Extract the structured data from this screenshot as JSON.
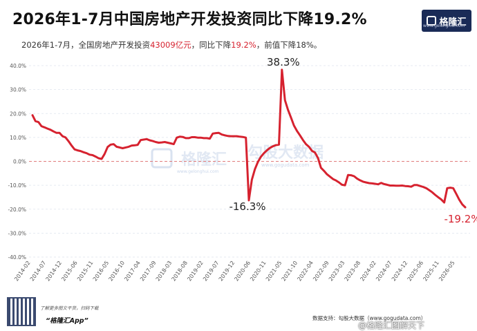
{
  "header": {
    "title": "2026年1-7月中国房地产开发投资同比下降19.2%",
    "subtitle_a": "2026年1-7月，全国房地产开发投资",
    "subtitle_b": "43009亿元",
    "subtitle_c": "，同比下降",
    "subtitle_d": "19.2%",
    "subtitle_e": "，前值下降18%。",
    "logo_text": "格隆汇",
    "logo_url": "www.gelonghui.com"
  },
  "watermarks": {
    "left": "格隆汇",
    "left_url": "www.gelonghui.com",
    "right": "勾股大数据",
    "right_url": "www.gogudata.com"
  },
  "footer": {
    "scan_text": "了解更多图文干货，扫码下载",
    "app_text": "“格隆汇App”",
    "source_text": "数据支持：勾股大数据（www.gogudata.com）",
    "weibo": "@格隆汇图解天下"
  },
  "colors": {
    "line": "#d6222f",
    "zero": "#e07a7a",
    "grid": "#dde3ee",
    "axis_text": "#555555",
    "brand": "#1a2b57"
  },
  "chart_data": {
    "type": "line",
    "title": "2026年1-7月中国房地产开发投资同比下降19.2%",
    "xlabel": "",
    "ylabel": "",
    "ylim": [
      -40,
      40
    ],
    "yticks": [
      "-40.0%",
      "-30.0%",
      "-20.0%",
      "-10.0%",
      "0.0%",
      "10.0%",
      "20.0%",
      "30.0%",
      "40.0%"
    ],
    "xtick_labels": [
      "2014-02",
      "2014-07",
      "2014-12",
      "2015-06",
      "2015-11",
      "2016-05",
      "2016-10",
      "2017-04",
      "2017-09",
      "2018-03",
      "2018-08",
      "2019-02",
      "2019-07",
      "2019-12",
      "2020-06",
      "2020-11",
      "2021-05",
      "2021-10",
      "2022-04",
      "2022-09",
      "2023-03",
      "2023-08",
      "2024-02",
      "2024-07",
      "2024-12",
      "2025-06",
      "2025-11",
      "2026-05"
    ],
    "series": [
      {
        "values": [
          [
            0,
            19.3
          ],
          [
            1,
            16.8
          ],
          [
            2,
            16.4
          ],
          [
            3,
            14.7
          ],
          [
            4,
            14.2
          ],
          [
            5,
            13.7
          ],
          [
            6,
            13.2
          ],
          [
            7,
            12.5
          ],
          [
            8,
            11.9
          ],
          [
            9,
            11.9
          ],
          [
            10,
            10.5
          ],
          [
            11,
            10.0
          ],
          [
            12,
            8.4
          ],
          [
            13,
            6.6
          ],
          [
            14,
            5.0
          ],
          [
            15,
            4.6
          ],
          [
            16,
            4.3
          ],
          [
            17,
            3.8
          ],
          [
            18,
            3.4
          ],
          [
            19,
            2.8
          ],
          [
            20,
            2.6
          ],
          [
            21,
            2.0
          ],
          [
            22,
            1.3
          ],
          [
            23,
            1.0
          ],
          [
            24,
            3.1
          ],
          [
            25,
            6.0
          ],
          [
            26,
            7.0
          ],
          [
            27,
            7.2
          ],
          [
            28,
            6.1
          ],
          [
            29,
            5.8
          ],
          [
            30,
            5.5
          ],
          [
            31,
            5.8
          ],
          [
            32,
            6.1
          ],
          [
            33,
            6.6
          ],
          [
            34,
            6.7
          ],
          [
            35,
            6.9
          ],
          [
            36,
            8.9
          ],
          [
            37,
            9.1
          ],
          [
            38,
            9.3
          ],
          [
            39,
            8.8
          ],
          [
            40,
            8.5
          ],
          [
            41,
            8.1
          ],
          [
            42,
            7.8
          ],
          [
            43,
            7.9
          ],
          [
            44,
            8.1
          ],
          [
            45,
            7.8
          ],
          [
            46,
            7.5
          ],
          [
            47,
            7.2
          ],
          [
            48,
            9.9
          ],
          [
            49,
            10.3
          ],
          [
            50,
            10.2
          ],
          [
            51,
            9.7
          ],
          [
            52,
            9.7
          ],
          [
            53,
            10.1
          ],
          [
            54,
            10.1
          ],
          [
            55,
            9.9
          ],
          [
            56,
            9.9
          ],
          [
            57,
            9.7
          ],
          [
            58,
            9.7
          ],
          [
            59,
            9.5
          ],
          [
            60,
            11.6
          ],
          [
            61,
            11.8
          ],
          [
            62,
            11.9
          ],
          [
            63,
            11.2
          ],
          [
            64,
            10.9
          ],
          [
            65,
            10.6
          ],
          [
            66,
            10.5
          ],
          [
            67,
            10.5
          ],
          [
            68,
            10.5
          ],
          [
            69,
            10.3
          ],
          [
            70,
            10.2
          ],
          [
            71,
            9.9
          ],
          [
            72,
            -16.3
          ],
          [
            73,
            -7.7
          ],
          [
            74,
            -3.3
          ],
          [
            75,
            -0.3
          ],
          [
            76,
            1.9
          ],
          [
            77,
            3.4
          ],
          [
            78,
            4.6
          ],
          [
            79,
            5.6
          ],
          [
            80,
            6.3
          ],
          [
            81,
            6.8
          ],
          [
            82,
            7.0
          ],
          [
            83,
            38.3
          ],
          [
            84,
            25.6
          ],
          [
            85,
            21.6
          ],
          [
            86,
            18.3
          ],
          [
            87,
            15.0
          ],
          [
            88,
            12.7
          ],
          [
            89,
            10.9
          ],
          [
            90,
            8.9
          ],
          [
            91,
            7.2
          ],
          [
            92,
            6.1
          ],
          [
            93,
            4.4
          ],
          [
            94,
            3.7
          ],
          [
            95,
            1.4
          ],
          [
            96,
            -2.7
          ],
          [
            97,
            -4.0
          ],
          [
            98,
            -5.4
          ],
          [
            99,
            -6.4
          ],
          [
            100,
            -7.4
          ],
          [
            101,
            -8.0
          ],
          [
            102,
            -8.8
          ],
          [
            103,
            -9.8
          ],
          [
            104,
            -10.0
          ],
          [
            105,
            -5.7
          ],
          [
            106,
            -5.8
          ],
          [
            107,
            -6.2
          ],
          [
            108,
            -7.2
          ],
          [
            109,
            -7.9
          ],
          [
            110,
            -8.5
          ],
          [
            111,
            -8.8
          ],
          [
            112,
            -9.1
          ],
          [
            113,
            -9.2
          ],
          [
            114,
            -9.4
          ],
          [
            115,
            -9.6
          ],
          [
            116,
            -9.0
          ],
          [
            117,
            -9.5
          ],
          [
            118,
            -9.8
          ],
          [
            119,
            -10.1
          ],
          [
            120,
            -10.1
          ],
          [
            121,
            -10.2
          ],
          [
            122,
            -10.2
          ],
          [
            123,
            -10.1
          ],
          [
            124,
            -10.3
          ],
          [
            125,
            -10.4
          ],
          [
            126,
            -10.6
          ],
          [
            127,
            -9.9
          ],
          [
            128,
            -9.9
          ],
          [
            129,
            -10.3
          ],
          [
            130,
            -10.7
          ],
          [
            131,
            -11.2
          ],
          [
            132,
            -12.0
          ],
          [
            133,
            -12.9
          ],
          [
            134,
            -14.0
          ],
          [
            135,
            -15.0
          ],
          [
            136,
            -15.9
          ],
          [
            137,
            -17.2
          ],
          [
            138,
            -11.2
          ],
          [
            139,
            -11.0
          ],
          [
            140,
            -11.2
          ],
          [
            141,
            -13.6
          ],
          [
            142,
            -16.0
          ],
          [
            143,
            -18.0
          ],
          [
            144,
            -19.2
          ]
        ]
      }
    ],
    "annotations": [
      {
        "text": "38.3%",
        "x": 83,
        "y": 38.3
      },
      {
        "text": "-16.3%",
        "x": 72,
        "y": -16.3
      },
      {
        "text": "-19.2%",
        "x": 144,
        "y": -19.2
      }
    ]
  }
}
